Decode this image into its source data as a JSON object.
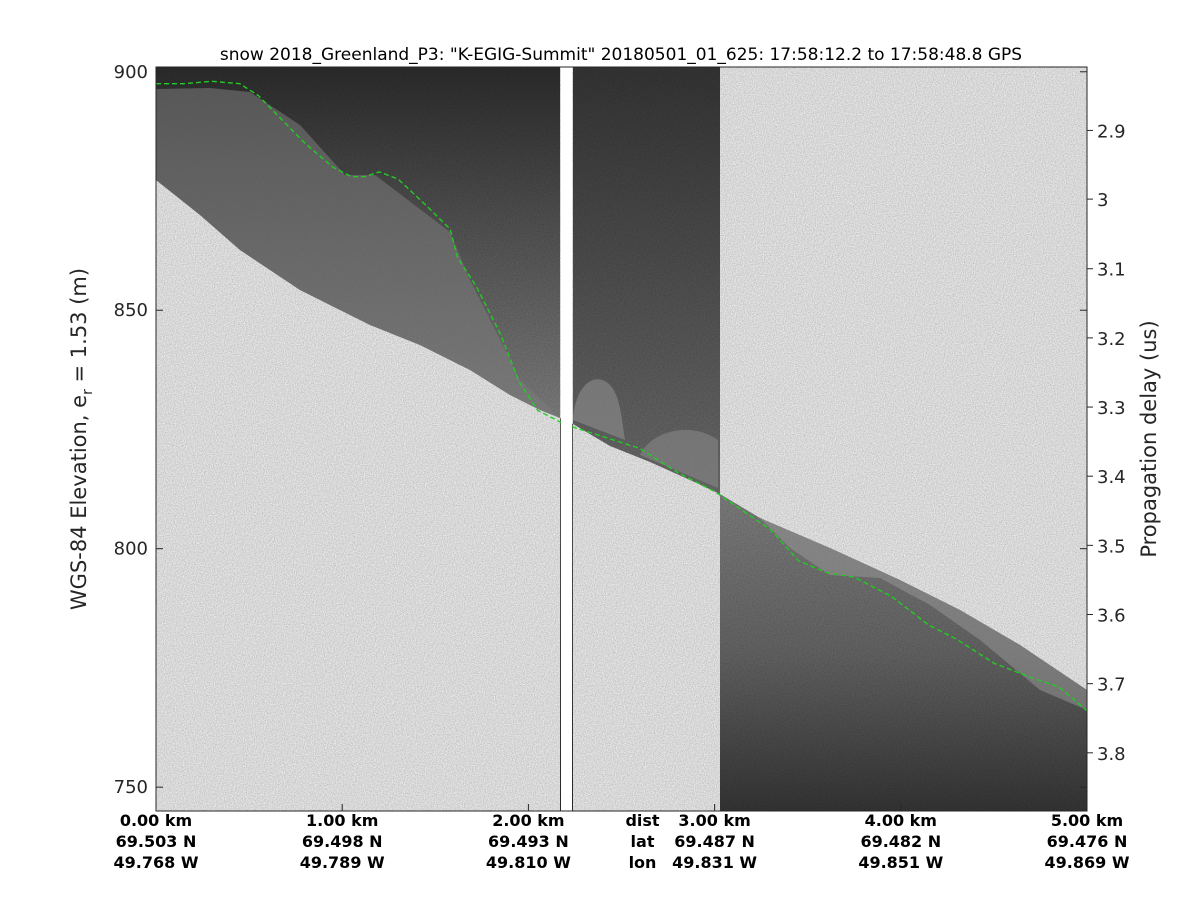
{
  "chart_data": {
    "type": "radar-echogram",
    "title": "snow 2018_Greenland_P3: \"K-EGIG-Summit\"  20180501_01_625: 17:58:12.2 to 17:58:48.8 GPS",
    "ylabel": "WGS-84 Elevation, e",
    "ylabel_sub": "r",
    "ylabel_tail": " = 1.53 (m)",
    "y2label": "Propagation delay (us)",
    "ylim": [
      745,
      901
    ],
    "y_ticks": [
      750,
      800,
      850,
      900
    ],
    "y2_ticks": [
      {
        "label": "2.9",
        "elev": 887.7
      },
      {
        "label": "3",
        "elev": 873.3
      },
      {
        "label": "3.1",
        "elev": 858.7
      },
      {
        "label": "3.2",
        "elev": 844.2
      },
      {
        "label": "3.3",
        "elev": 829.7
      },
      {
        "label": "3.4",
        "elev": 815.2
      },
      {
        "label": "3.5",
        "elev": 800.7
      },
      {
        "label": "3.6",
        "elev": 786.2
      },
      {
        "label": "3.7",
        "elev": 771.7
      },
      {
        "label": "3.8",
        "elev": 757.2
      }
    ],
    "xlim_km": [
      0,
      5
    ],
    "x_ticks": [
      {
        "km": 0,
        "dist": "0.00 km",
        "lat": "69.503 N",
        "lon": "49.768 W"
      },
      {
        "km": 1,
        "dist": "1.00 km",
        "lat": "69.498 N",
        "lon": "49.789 W"
      },
      {
        "km": 2,
        "dist": "2.00 km",
        "lat": "69.493 N",
        "lon": "49.810 W"
      },
      {
        "km": 3,
        "dist": "3.00 km",
        "lat": "69.487 N",
        "lon": "49.831 W"
      },
      {
        "km": 4,
        "dist": "4.00 km",
        "lat": "69.482 N",
        "lon": "49.851 W"
      },
      {
        "km": 5,
        "dist": "5.00 km",
        "lat": "69.476 N",
        "lon": "49.869 W"
      }
    ],
    "x_tick_legend": {
      "dist": "dist",
      "lat": "lat",
      "lon": "lon"
    },
    "surface_trace": {
      "color": "#22cc22",
      "style": "dashed",
      "points_km_elev": [
        [
          0.0,
          897.5
        ],
        [
          0.15,
          897.5
        ],
        [
          0.3,
          898
        ],
        [
          0.45,
          897.5
        ],
        [
          0.55,
          895
        ],
        [
          0.65,
          891
        ],
        [
          0.8,
          885
        ],
        [
          0.95,
          880
        ],
        [
          1.05,
          878
        ],
        [
          1.12,
          878
        ],
        [
          1.2,
          879
        ],
        [
          1.3,
          877.5
        ],
        [
          1.45,
          872
        ],
        [
          1.58,
          867
        ],
        [
          1.62,
          861
        ],
        [
          1.72,
          855
        ],
        [
          1.85,
          845
        ],
        [
          1.95,
          835
        ],
        [
          2.05,
          829
        ],
        [
          2.2,
          826
        ],
        [
          2.4,
          823.5
        ],
        [
          2.6,
          821
        ],
        [
          2.8,
          816
        ],
        [
          3.0,
          812
        ],
        [
          3.15,
          808
        ],
        [
          3.3,
          804
        ],
        [
          3.45,
          797.5
        ],
        [
          3.6,
          795
        ],
        [
          3.75,
          794
        ],
        [
          3.95,
          790
        ],
        [
          4.15,
          784
        ],
        [
          4.3,
          781
        ],
        [
          4.5,
          776
        ],
        [
          4.7,
          773
        ],
        [
          4.85,
          771
        ],
        [
          5.0,
          766
        ]
      ]
    },
    "colormap": "gray"
  }
}
